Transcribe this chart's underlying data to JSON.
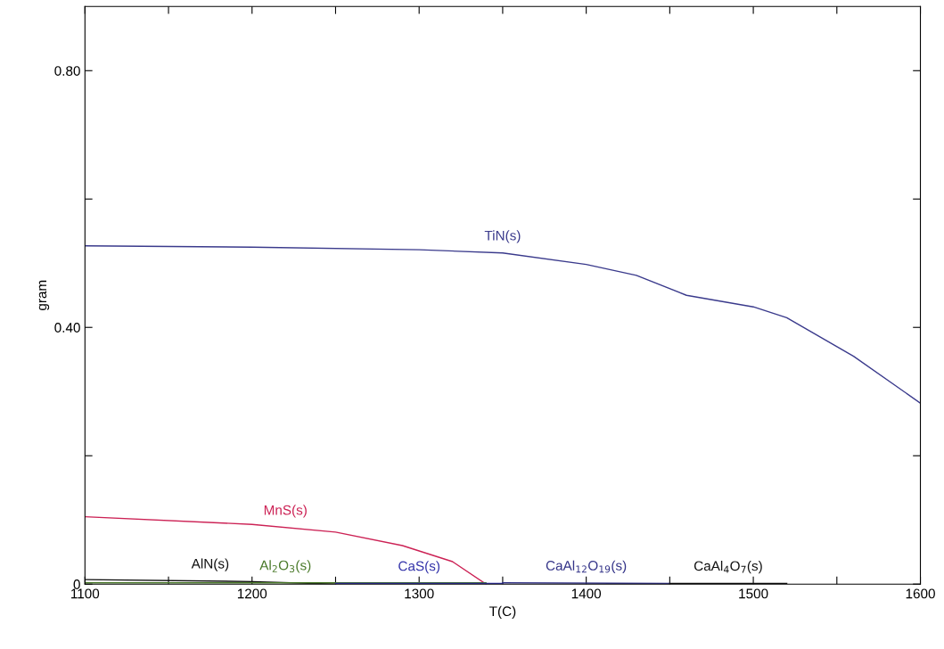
{
  "chart_data": {
    "type": "line",
    "xlabel": "T(C)",
    "ylabel": "gram",
    "xlim": [
      1100,
      1600
    ],
    "ylim": [
      0,
      0.9
    ],
    "xticks": [
      1100,
      {
        "value": 1150,
        "label": null
      },
      1200,
      {
        "value": 1250,
        "label": null
      },
      1300,
      {
        "value": 1350,
        "label": null
      },
      1400,
      {
        "value": 1450,
        "label": null
      },
      1500,
      {
        "value": 1550,
        "label": null
      },
      1600
    ],
    "yticks": [
      {
        "value": 0,
        "label": "0"
      },
      {
        "value": 0.2,
        "label": null
      },
      {
        "value": 0.4,
        "label": "0.40"
      },
      {
        "value": 0.6,
        "label": null
      },
      {
        "value": 0.8,
        "label": "0.80"
      }
    ],
    "grid": false,
    "legend": false,
    "marker": "none",
    "line_style": "solid",
    "series": [
      {
        "name": "TiN(s)",
        "color": "#3a3a8c",
        "x": [
          1100,
          1200,
          1300,
          1350,
          1400,
          1430,
          1460,
          1500,
          1520,
          1560,
          1600
        ],
        "values": [
          0.527,
          0.525,
          0.521,
          0.516,
          0.498,
          0.481,
          0.45,
          0.432,
          0.415,
          0.355,
          0.282
        ]
      },
      {
        "name": "MnS(s)",
        "color": "#cc2255",
        "x": [
          1100,
          1200,
          1250,
          1290,
          1320,
          1340
        ],
        "values": [
          0.105,
          0.093,
          0.081,
          0.06,
          0.035,
          0
        ]
      },
      {
        "name": "AlN(s)",
        "color": "#111111",
        "x": [
          1100,
          1200,
          1250
        ],
        "values": [
          0.007,
          0.004,
          0
        ]
      },
      {
        "name": "Al$_{2}$O$_{3}$(s)",
        "color": "#4a7a2a",
        "x": [
          1100,
          1340
        ],
        "values": [
          0.002,
          0.002
        ]
      },
      {
        "name": "CaS(s)",
        "color": "#3333aa",
        "x": [
          1250,
          1350
        ],
        "values": [
          0.001,
          0.001
        ]
      },
      {
        "name": "CaAl$_{12}$O$_{19}$(s)",
        "color": "#333388",
        "x": [
          1350,
          1450
        ],
        "values": [
          0.002,
          0.001
        ]
      },
      {
        "name": "CaAl$_{4}$O$_{7}$(s)",
        "color": "#111111",
        "x": [
          1450,
          1520
        ],
        "values": [
          0.001,
          0.001
        ]
      }
    ]
  }
}
